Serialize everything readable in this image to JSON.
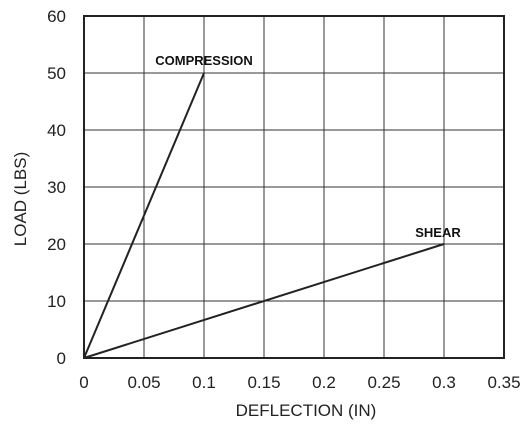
{
  "chart_data": {
    "type": "line",
    "title": "",
    "xlabel": "DEFLECTION (IN)",
    "ylabel": "LOAD (LBS)",
    "xlim": [
      0,
      0.35
    ],
    "ylim": [
      0,
      60
    ],
    "x_ticks": [
      "0",
      "0.05",
      "0.1",
      "0.15",
      "0.2",
      "0.25",
      "0.3",
      "0.35"
    ],
    "y_ticks": [
      "0",
      "10",
      "20",
      "30",
      "40",
      "50",
      "60"
    ],
    "grid": true,
    "legend": "none",
    "series": [
      {
        "name": "COMPRESSION",
        "x": [
          0,
          0.1
        ],
        "y": [
          0,
          50
        ]
      },
      {
        "name": "SHEAR",
        "x": [
          0,
          0.3
        ],
        "y": [
          0,
          20
        ]
      }
    ]
  }
}
